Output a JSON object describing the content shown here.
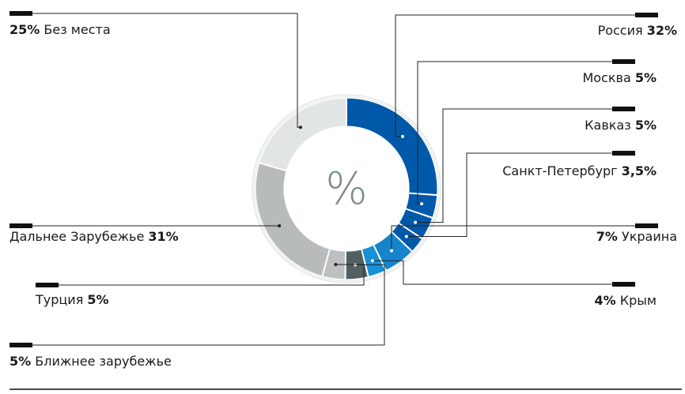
{
  "chart_data": {
    "type": "pie",
    "style": "donut",
    "center_label": "%",
    "segments": [
      {
        "label": "Россия",
        "value": 32,
        "value_text": "32%",
        "color": "#0058a8",
        "pct_first": false
      },
      {
        "label": "Москва",
        "value": 5,
        "value_text": "5%",
        "color": "#0058a8",
        "pct_first": false
      },
      {
        "label": "Кавказ",
        "value": 5,
        "value_text": "5%",
        "color": "#0058a8",
        "pct_first": false
      },
      {
        "label": "Санкт-Петербург",
        "value": 3.5,
        "value_text": "3,5%",
        "color": "#0058a8",
        "pct_first": false
      },
      {
        "label": "Украина",
        "value": 7,
        "value_text": "7%",
        "color": "#1684cc",
        "pct_first": true
      },
      {
        "label": "Крым",
        "value": 4,
        "value_text": "4%",
        "color": "#1790d8",
        "pct_first": true
      },
      {
        "label": "Ближнее зарубежье",
        "value": 5,
        "value_text": "5%",
        "color": "#525f63",
        "pct_first": true
      },
      {
        "label": "Турция",
        "value": 5,
        "value_text": "5%",
        "color": "#bcc0c0",
        "pct_first": false
      },
      {
        "label": "Дальнее Зарубежье",
        "value": 31,
        "value_text": "31%",
        "color": "#b7bbbb",
        "pct_first": false
      },
      {
        "label": "Без места",
        "value": 25,
        "value_text": "25%",
        "color": "#e2e5e6",
        "pct_first": true
      }
    ]
  }
}
